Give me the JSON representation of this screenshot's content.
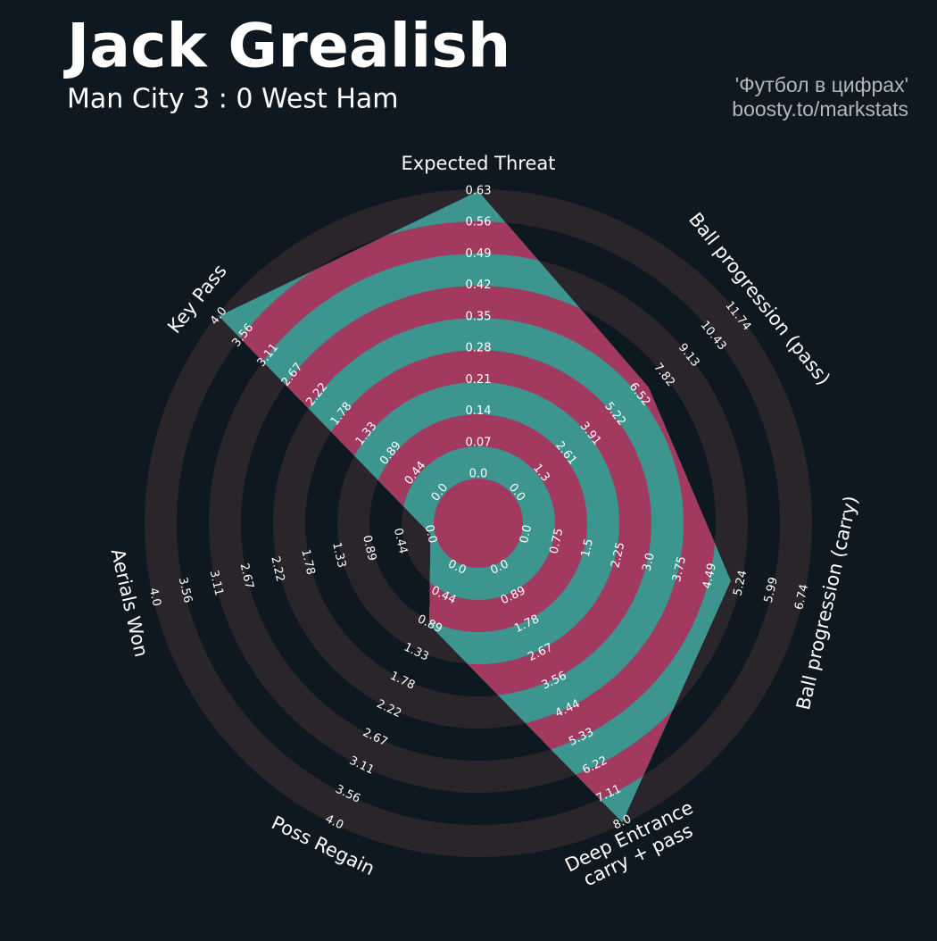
{
  "chart_data": {
    "type": "radar",
    "title": "Jack Grealish",
    "subtitle": "Man City 3 : 0 West Ham",
    "credits": [
      "'Футбол в цифрах'",
      "boosty.to/markstats"
    ],
    "categories": [
      "Expected Threat",
      "Ball progression (pass)",
      "Ball progression (carry)",
      [
        "Deep Entrance",
        "carry + pass"
      ],
      "Poss Regain",
      "Aerials Won",
      "Key Pass"
    ],
    "values": [
      0.63,
      7.0,
      5.0,
      8.0,
      0.9,
      0,
      4.0
    ],
    "axes": [
      {
        "lim": [
          0,
          0.63
        ],
        "ticks": [
          {
            "value": 0,
            "label": "0.0"
          },
          0.07,
          0.14,
          0.21,
          0.28,
          0.35,
          0.42,
          0.49,
          0.56,
          0.63
        ]
      },
      {
        "lim": [
          0,
          11.74
        ],
        "ticks": [
          {
            "value": 0,
            "label": "0.0"
          },
          1.3,
          2.61,
          3.91,
          5.22,
          6.52,
          7.82,
          9.13,
          10.43,
          11.74
        ]
      },
      {
        "lim": [
          0,
          6.74
        ],
        "ticks": [
          {
            "value": 0,
            "label": "0.0"
          },
          0.75,
          1.5,
          2.25,
          {
            "value": 3,
            "label": "3.0"
          },
          3.75,
          4.49,
          5.24,
          5.99,
          6.74
        ]
      },
      {
        "lim": [
          0,
          8
        ],
        "ticks": [
          {
            "value": 0,
            "label": "0.0"
          },
          0.89,
          1.78,
          2.67,
          3.56,
          4.44,
          5.33,
          6.22,
          7.11,
          {
            "value": 8,
            "label": "8.0"
          }
        ]
      },
      {
        "lim": [
          0,
          4
        ],
        "ticks": [
          {
            "value": 0,
            "label": "0.0"
          },
          0.44,
          0.89,
          1.33,
          1.78,
          2.22,
          2.67,
          3.11,
          3.56,
          {
            "value": 4,
            "label": "4.0"
          }
        ]
      },
      {
        "lim": [
          0,
          4
        ],
        "ticks": [
          {
            "value": 0,
            "label": "0.0"
          },
          0.44,
          0.89,
          1.33,
          1.78,
          2.22,
          2.67,
          3.11,
          3.56,
          {
            "value": 4,
            "label": "4.0"
          }
        ]
      },
      {
        "lim": [
          0,
          4
        ],
        "ticks": [
          {
            "value": 0,
            "label": "0.0"
          },
          0.44,
          0.89,
          1.33,
          1.78,
          2.22,
          2.67,
          3.11,
          3.56,
          {
            "value": 4,
            "label": "4.0"
          }
        ]
      }
    ],
    "colors": {
      "band": "#3d958f",
      "band_alt": "#a23a60",
      "ring": "#29252b"
    }
  }
}
